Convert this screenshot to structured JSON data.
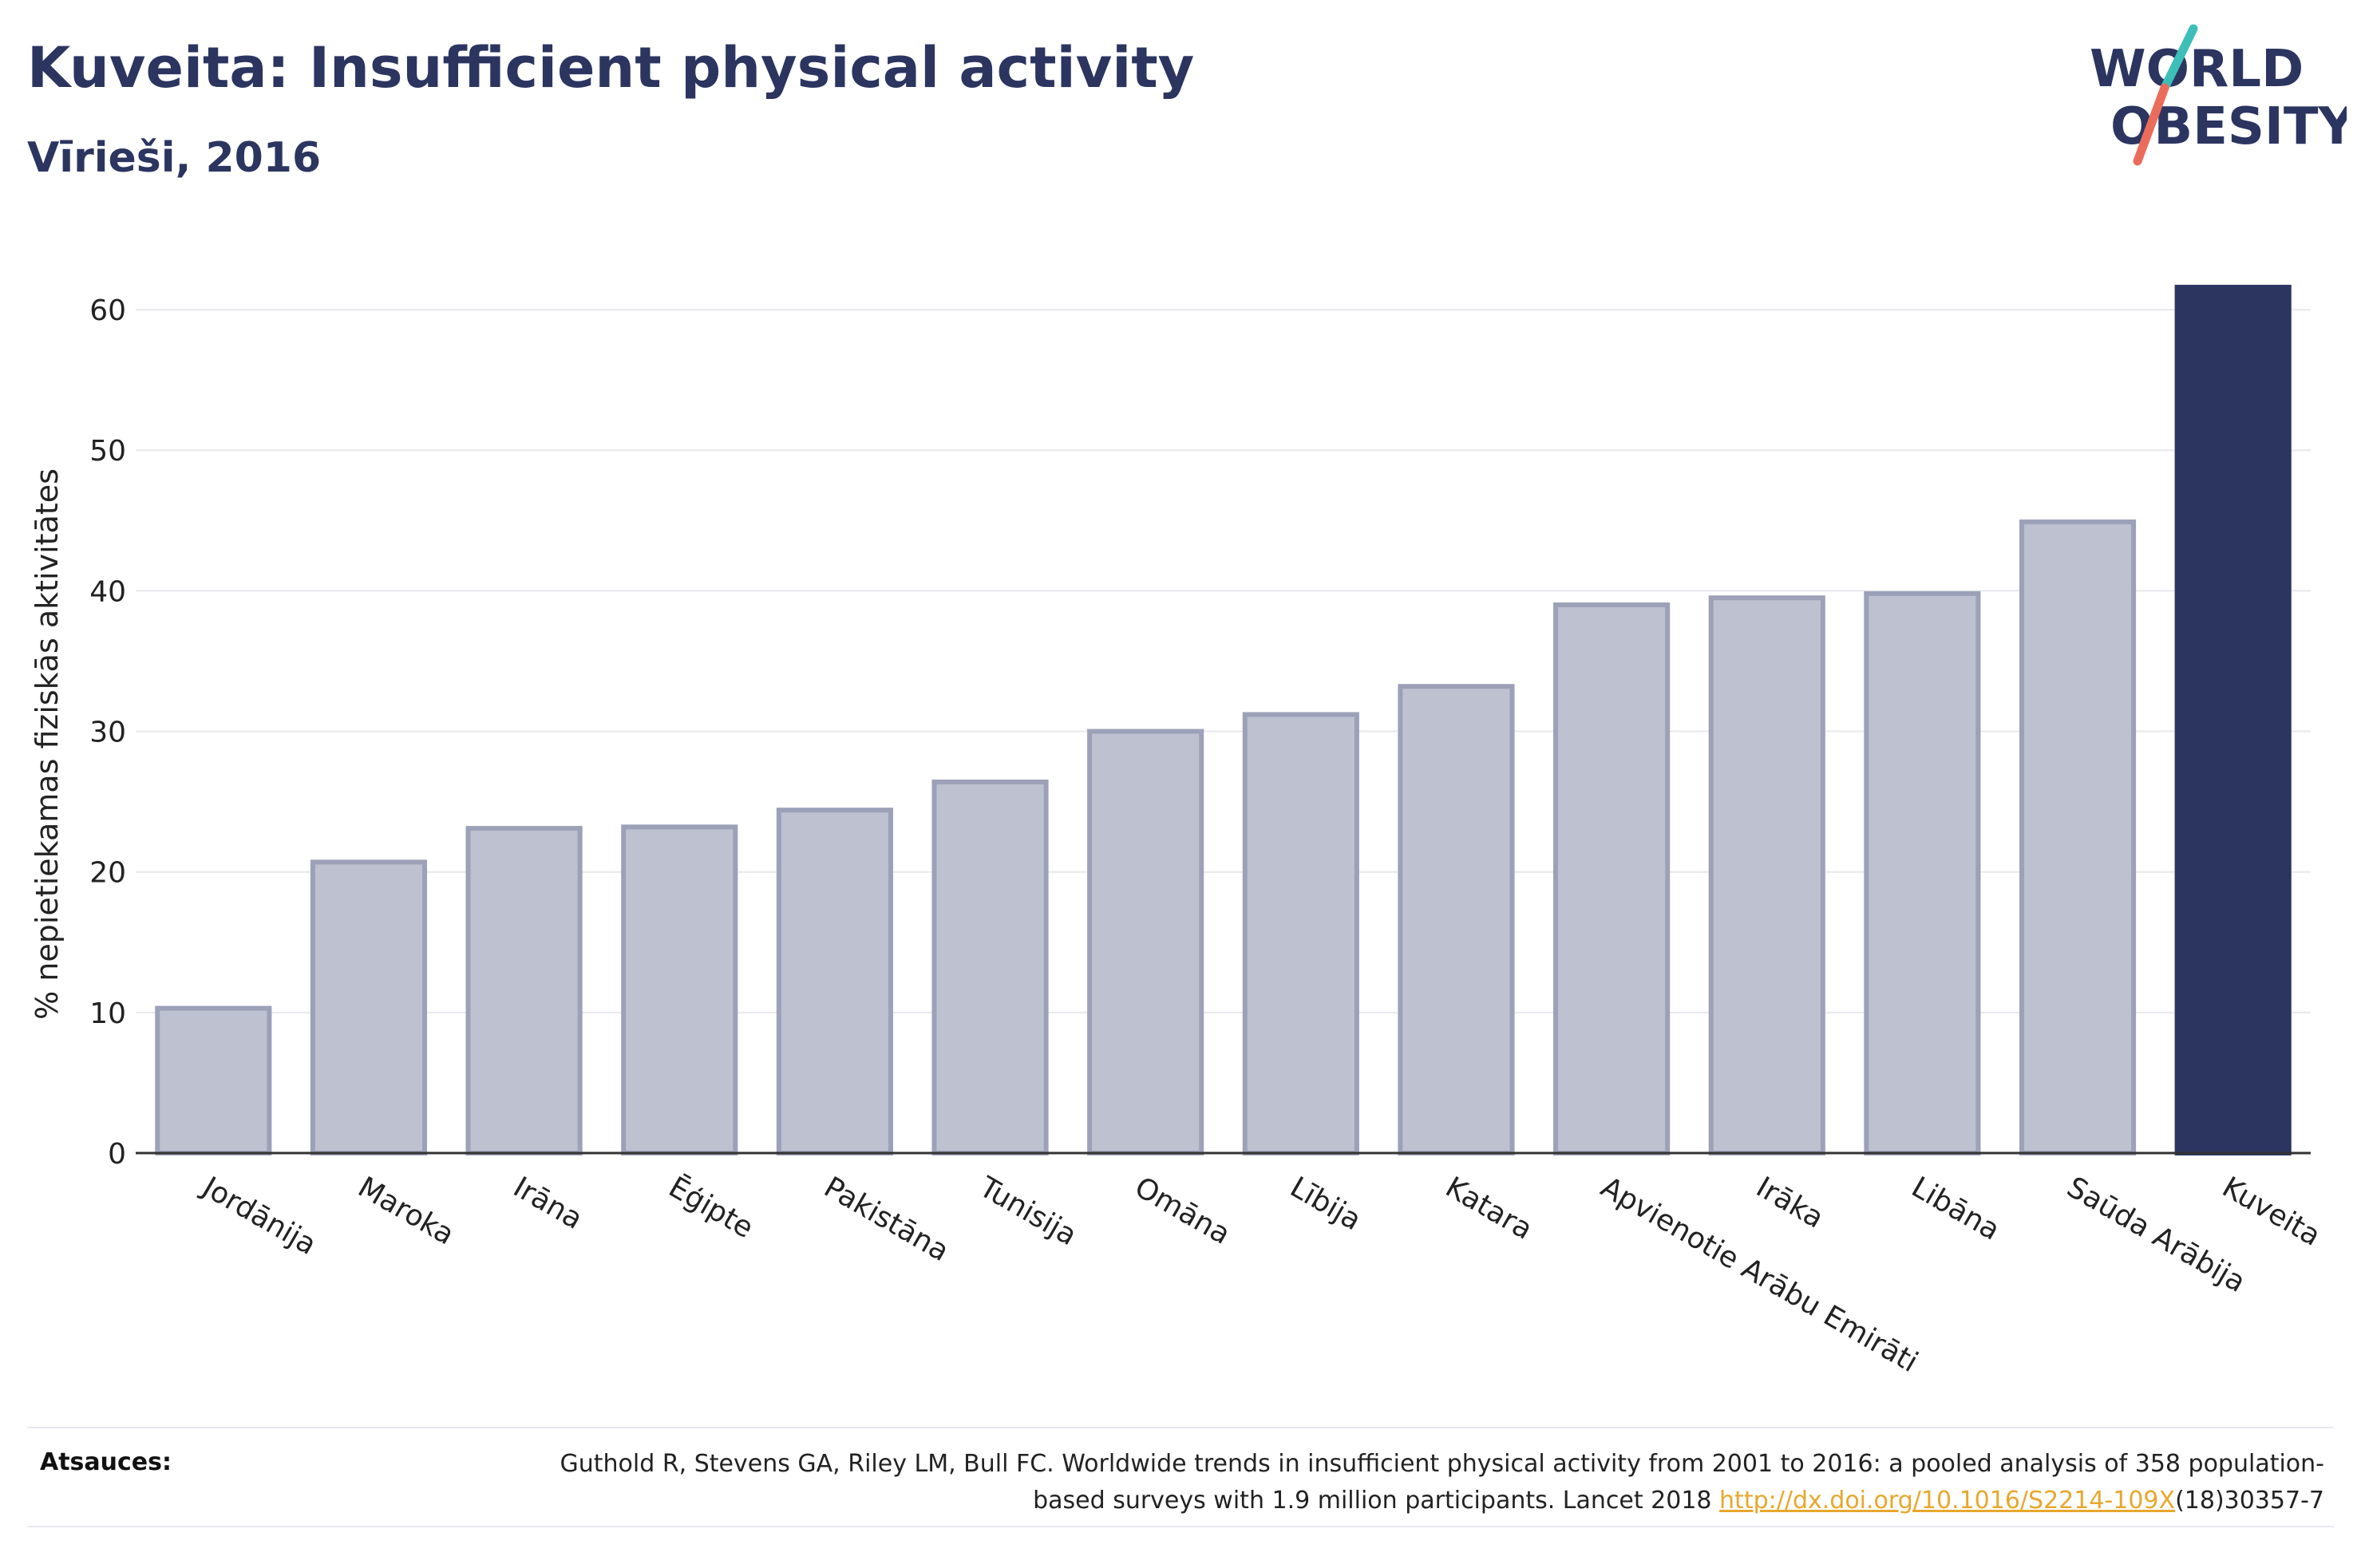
{
  "header": {
    "title": "Kuveita: Insufficient physical activity",
    "subtitle": "Vīrieši, 2016"
  },
  "logo": {
    "line1": "WORLD",
    "line2": "OBESITY"
  },
  "chart_data": {
    "type": "bar",
    "title": "Kuveita: Insufficient physical activity",
    "subtitle": "Vīrieši, 2016",
    "xlabel": "",
    "ylabel": "% nepietiekamas fiziskās aktivitātes",
    "ylim": [
      0,
      65
    ],
    "yticks": [
      0,
      10,
      20,
      30,
      40,
      50,
      60
    ],
    "grid": true,
    "legend": "none",
    "categories": [
      "Jordānija",
      "Maroka",
      "Irāna",
      "Ēģipte",
      "Pakistāna",
      "Tunisija",
      "Omāna",
      "Lībija",
      "Katara",
      "Apvienotie Arābu Emirāti",
      "Irāka",
      "Libāna",
      "Saūda Arābija",
      "Kuveita"
    ],
    "values": [
      10.3,
      20.7,
      23.1,
      23.2,
      24.4,
      26.4,
      30.0,
      31.2,
      33.2,
      39.0,
      39.5,
      39.8,
      44.9,
      61.6
    ],
    "highlight": "Kuveita",
    "colors": {
      "bar": "#bec1cf",
      "bar_border": "#9ca1b8",
      "highlight": "#2b3560",
      "grid": "#e8e8ee",
      "axis": "#333333"
    }
  },
  "footer": {
    "label": "Atsauces:",
    "text_before": "Guthold R, Stevens GA, Riley LM, Bull FC. Worldwide trends in insufficient physical activity from 2001 to 2016: a pooled analysis of 358 population-based surveys with 1.9 million participants. Lancet 2018 ",
    "link": "http://dx.doi.org/10.1016/S2214-109X",
    "text_after": "(18)30357-7"
  }
}
